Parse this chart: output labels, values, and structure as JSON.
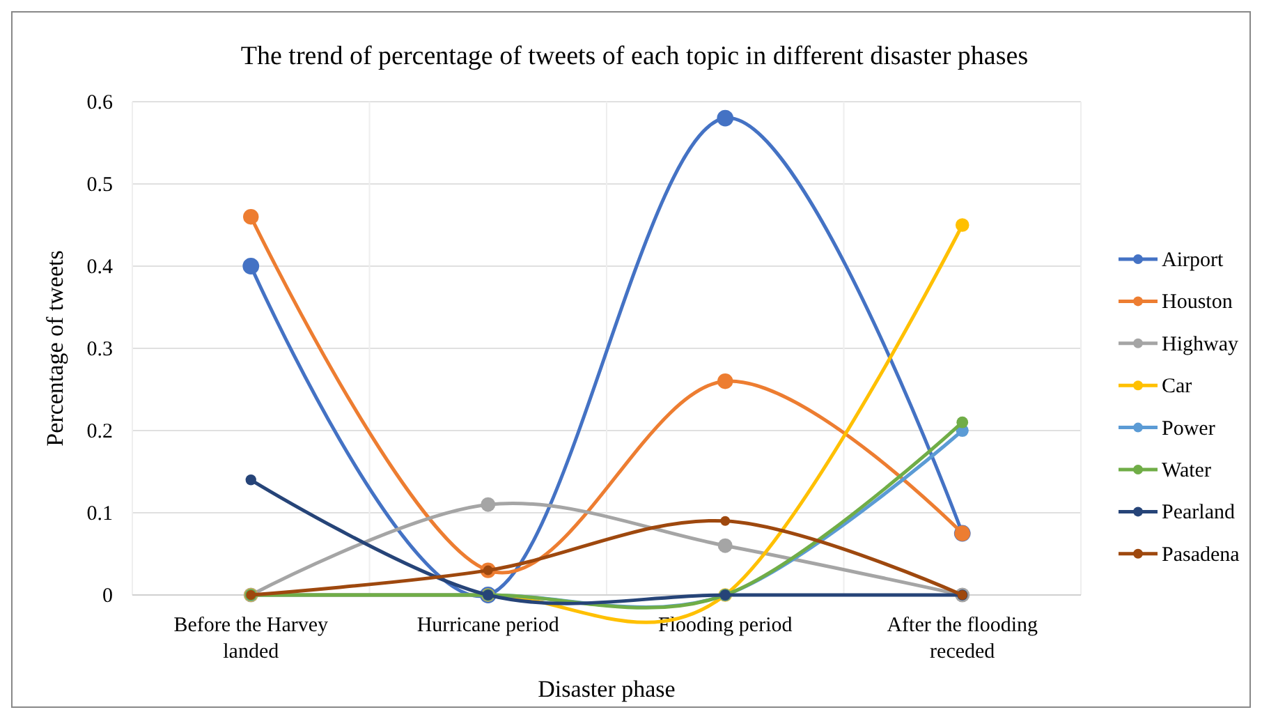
{
  "chart_data": {
    "type": "line",
    "title": "The trend of percentage of tweets of each topic in different disaster phases",
    "xlabel": "Disaster phase",
    "ylabel": "Percentage of tweets",
    "categories": [
      "Before the Harvey landed",
      "Hurricane period",
      "Flooding period",
      "After the flooding receded"
    ],
    "ylim": [
      0,
      0.6
    ],
    "yticks": [
      {
        "value": 0,
        "label": "0"
      },
      0.1,
      0.2,
      0.3,
      0.4,
      0.5,
      0.6
    ],
    "grid": true,
    "legend": "right",
    "marker": "circle",
    "line_style": "solid",
    "series": [
      {
        "name": "Airport",
        "color": "#4472c4",
        "values": [
          0.4,
          0,
          0.58,
          0.075
        ]
      },
      {
        "name": "Houston",
        "color": "#ed7d31",
        "values": [
          0.46,
          0.03,
          0.26,
          0.075
        ]
      },
      {
        "name": "Highway",
        "color": "#a5a5a5",
        "values": [
          0,
          0.11,
          0.06,
          0
        ]
      },
      {
        "name": "Car",
        "color": "#ffc000",
        "values": [
          0,
          0,
          0,
          0.45
        ]
      },
      {
        "name": "Power",
        "color": "#5b9bd5",
        "values": [
          0,
          0,
          0,
          0.2
        ]
      },
      {
        "name": "Water",
        "color": "#70ad47",
        "values": [
          0,
          0,
          0,
          0.21
        ]
      },
      {
        "name": "Pearland",
        "color": "#264478",
        "values": [
          0.14,
          0,
          0,
          0
        ]
      },
      {
        "name": "Pasadena",
        "color": "#9e480e",
        "values": [
          0,
          0.03,
          0.09,
          0
        ]
      }
    ]
  }
}
